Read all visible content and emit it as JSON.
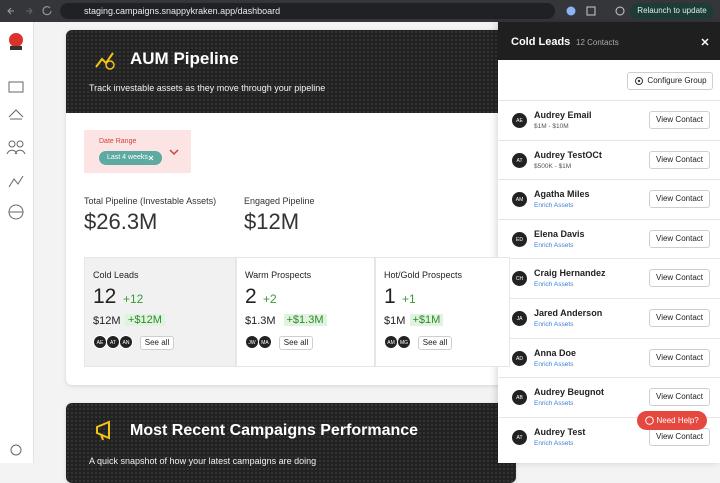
{
  "browser": {
    "url": "staging.campaigns.snappykraken.app/dashboard",
    "relaunch": "Relaunch to update"
  },
  "pipeline_card": {
    "title": "AUM Pipeline",
    "subtitle": "Track investable assets as they move through your pipeline",
    "date_range": {
      "label": "Date Range",
      "chip": "Last 4 weeks"
    },
    "stats": [
      {
        "label": "Total Pipeline (Investable Assets)",
        "value": "$26.3M"
      },
      {
        "label": "Engaged Pipeline",
        "value": "$12M"
      }
    ],
    "stages": [
      {
        "name": "Cold Leads",
        "count": "12",
        "count_delta": "+12",
        "amount": "$12M",
        "amount_delta": "+$12M",
        "avatars": [
          "AE",
          "AT",
          "AN"
        ],
        "see_all": "See all"
      },
      {
        "name": "Warm Prospects",
        "count": "2",
        "count_delta": "+2",
        "amount": "$1.3M",
        "amount_delta": "+$1.3M",
        "avatars": [
          "JW",
          "MA"
        ],
        "see_all": "See all"
      },
      {
        "name": "Hot/Gold Prospects",
        "count": "1",
        "count_delta": "+1",
        "amount": "$1M",
        "amount_delta": "+$1M",
        "avatars": [
          "AM",
          "MG"
        ],
        "see_all": "See all"
      }
    ]
  },
  "campaigns_card": {
    "title": "Most Recent Campaigns Performance",
    "subtitle": "A quick snapshot of how your latest campaigns are doing"
  },
  "panel": {
    "title": "Cold Leads",
    "count": "12 Contacts",
    "configure": "Configure Group",
    "contacts": [
      {
        "initials": "AE",
        "name": "Audrey Email",
        "detail": "$1M - $10M",
        "action": "View Contact"
      },
      {
        "initials": "AT",
        "name": "Audrey TestOCt",
        "detail": "$500K - $1M",
        "action": "View Contact"
      },
      {
        "initials": "AM",
        "name": "Agatha Miles",
        "detail": "Enrich Assets",
        "action": "View Contact"
      },
      {
        "initials": "ED",
        "name": "Elena Davis",
        "detail": "Enrich Assets",
        "action": "View Contact"
      },
      {
        "initials": "CH",
        "name": "Craig Hernandez",
        "detail": "Enrich Assets",
        "action": "View Contact"
      },
      {
        "initials": "JA",
        "name": "Jared Anderson",
        "detail": "Enrich Assets",
        "action": "View Contact"
      },
      {
        "initials": "AD",
        "name": "Anna Doe",
        "detail": "Enrich Assets",
        "action": "View Contact"
      },
      {
        "initials": "AB",
        "name": "Audrey Beugnot",
        "detail": "Enrich Assets",
        "action": "View Contact"
      },
      {
        "initials": "AT",
        "name": "Audrey Test",
        "detail": "Enrich Assets",
        "action": "View Contact"
      }
    ]
  },
  "help": "Need Help?"
}
